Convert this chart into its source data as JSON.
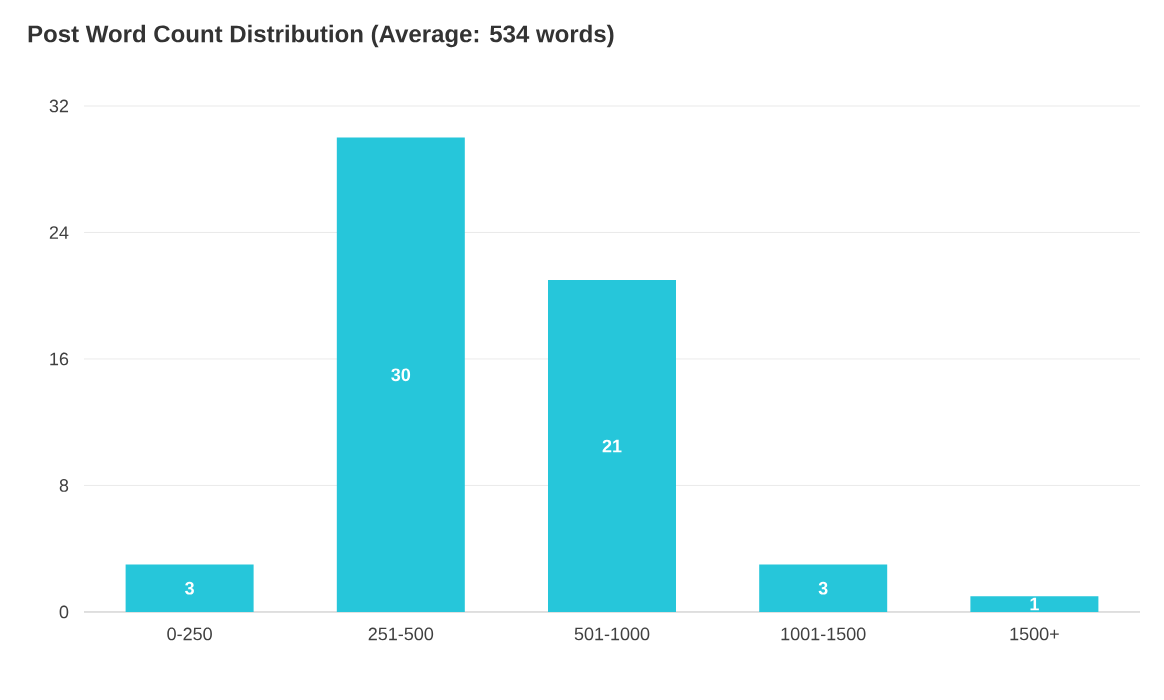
{
  "chart_data": {
    "type": "bar",
    "title": "Post Word Count Distribution (Average: 534 words)",
    "categories": [
      "0-250",
      "251-500",
      "501-1000",
      "1001-1500",
      "1500+"
    ],
    "values": [
      3,
      30,
      21,
      3,
      1
    ],
    "color": "#26c6da",
    "ylim": [
      0,
      32
    ],
    "yticks": [
      0,
      8,
      16,
      24,
      32
    ],
    "grid": "y",
    "data_labels": true
  }
}
